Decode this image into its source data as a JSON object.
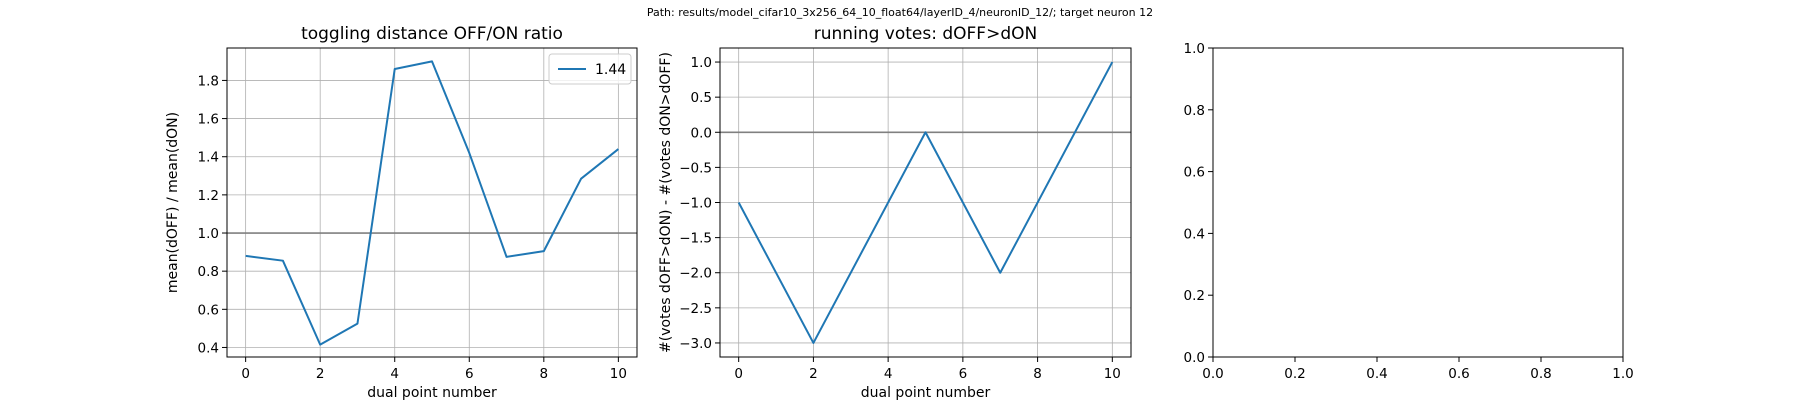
{
  "figure": {
    "suptitle": "Path: results/model_cifar10_3x256_64_10_float64/layerID_4/neuronID_12/; target neuron 12"
  },
  "chart_data": [
    {
      "type": "line",
      "title": "toggling distance OFF/ON ratio",
      "xlabel": "dual point number",
      "ylabel": "mean(dOFF) / mean(dON)",
      "xlim": [
        -0.5,
        10.5
      ],
      "ylim": [
        0.35,
        1.97
      ],
      "xticks": [
        0,
        2,
        4,
        6,
        8,
        10
      ],
      "xtick_labels": [
        "0",
        "2",
        "4",
        "6",
        "8",
        "10"
      ],
      "yticks": [
        0.4,
        0.6,
        0.8,
        1.0,
        1.2,
        1.4,
        1.6,
        1.8
      ],
      "ytick_labels": [
        "0.4",
        "0.6",
        "0.8",
        "1.0",
        "1.2",
        "1.4",
        "1.6",
        "1.8"
      ],
      "grid": true,
      "hline": 1.0,
      "legend": "upper right",
      "series": [
        {
          "name": "1.44",
          "color": "#1f77b4",
          "x": [
            0,
            1,
            2,
            3,
            4,
            5,
            6,
            7,
            8,
            9,
            10
          ],
          "y": [
            0.88,
            0.855,
            0.415,
            0.525,
            1.86,
            1.9,
            1.42,
            0.875,
            0.905,
            1.285,
            1.44
          ]
        }
      ]
    },
    {
      "type": "line",
      "title": "running votes: dOFF>dON",
      "xlabel": "dual point number",
      "ylabel": "#(votes dOFF>dON) - #(votes dON>dOFF)",
      "xlim": [
        -0.5,
        10.5
      ],
      "ylim": [
        -3.2,
        1.2
      ],
      "xticks": [
        0,
        2,
        4,
        6,
        8,
        10
      ],
      "xtick_labels": [
        "0",
        "2",
        "4",
        "6",
        "8",
        "10"
      ],
      "yticks": [
        -3.0,
        -2.5,
        -2.0,
        -1.5,
        -1.0,
        -0.5,
        0.0,
        0.5,
        1.0
      ],
      "ytick_labels": [
        "−3.0",
        "−2.5",
        "−2.0",
        "−1.5",
        "−1.0",
        "−0.5",
        "0.0",
        "0.5",
        "1.0"
      ],
      "grid": true,
      "hline": 0.0,
      "series": [
        {
          "color": "#1f77b4",
          "x": [
            0,
            2,
            5,
            7,
            10
          ],
          "y": [
            -1,
            -3,
            0,
            -2,
            1
          ]
        }
      ]
    },
    {
      "type": "line",
      "title": "",
      "xlabel": "",
      "ylabel": "",
      "xlim": [
        0.0,
        1.0
      ],
      "ylim": [
        0.0,
        1.0
      ],
      "xticks": [
        0.0,
        0.2,
        0.4,
        0.6,
        0.8,
        1.0
      ],
      "xtick_labels": [
        "0.0",
        "0.2",
        "0.4",
        "0.6",
        "0.8",
        "1.0"
      ],
      "yticks": [
        0.0,
        0.2,
        0.4,
        0.6,
        0.8,
        1.0
      ],
      "ytick_labels": [
        "0.0",
        "0.2",
        "0.4",
        "0.6",
        "0.8",
        "1.0"
      ],
      "grid": false,
      "series": []
    }
  ]
}
